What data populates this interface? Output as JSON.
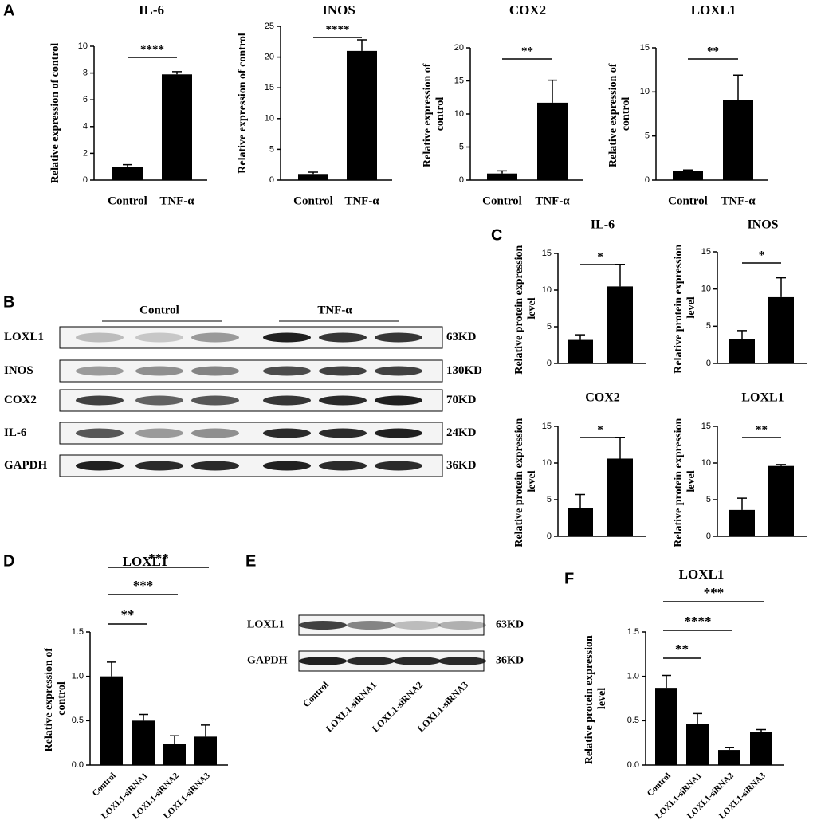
{
  "panels": {
    "a": "A",
    "b": "B",
    "c": "C",
    "d": "D",
    "e": "E",
    "f": "F"
  },
  "chart_data": [
    {
      "type": "bar",
      "title": "IL-6",
      "ylabel": "Relative expression of control",
      "categories": [
        "Control",
        "TNF-α"
      ],
      "values": [
        1.0,
        7.9
      ],
      "errors": [
        0.15,
        0.2
      ],
      "color": "#000000",
      "ylim": [
        0,
        10
      ],
      "yticks": [
        0,
        2,
        4,
        6,
        8,
        10
      ],
      "significance": "****"
    },
    {
      "type": "bar",
      "title": "INOS",
      "ylabel": "Relative expression of control",
      "categories": [
        "Control",
        "TNF-α"
      ],
      "values": [
        1.0,
        21.0
      ],
      "errors": [
        0.3,
        1.8
      ],
      "color": "#000000",
      "ylim": [
        0,
        25
      ],
      "yticks": [
        0,
        5,
        10,
        15,
        20,
        25
      ],
      "significance": "****"
    },
    {
      "type": "bar",
      "title": "COX2",
      "ylabel": "Relative expression of control",
      "categories": [
        "Control",
        "TNF-α"
      ],
      "values": [
        1.0,
        11.7
      ],
      "errors": [
        0.4,
        3.4
      ],
      "color": "#000000",
      "ylim": [
        0,
        20
      ],
      "yticks": [
        0,
        5,
        10,
        15,
        20
      ],
      "significance": "**"
    },
    {
      "type": "bar",
      "title": "LOXL1",
      "ylabel": "Relative expression of control",
      "categories": [
        "Control",
        "TNF-α"
      ],
      "values": [
        1.0,
        9.1
      ],
      "errors": [
        0.15,
        2.8
      ],
      "color": "#000000",
      "ylim": [
        0,
        15
      ],
      "yticks": [
        0,
        5,
        10,
        15
      ],
      "significance": "**"
    },
    {
      "type": "bar",
      "title": "IL-6",
      "ylabel": "Relative protein expression level",
      "values": [
        3.2,
        10.5
      ],
      "errors": [
        0.7,
        3.0
      ],
      "color": "#000000",
      "ylim": [
        0,
        15
      ],
      "yticks": [
        0,
        5,
        10,
        15
      ],
      "significance": "*"
    },
    {
      "type": "bar",
      "title": "INOS",
      "ylabel": "Relative protein expression level",
      "values": [
        3.3,
        8.9
      ],
      "errors": [
        1.1,
        2.6
      ],
      "color": "#000000",
      "ylim": [
        0,
        15
      ],
      "yticks": [
        0,
        5,
        10,
        15
      ],
      "significance": "*"
    },
    {
      "type": "bar",
      "title": "COX2",
      "ylabel": "Relative protein expression level",
      "values": [
        3.9,
        10.6
      ],
      "errors": [
        1.8,
        2.9
      ],
      "color": "#000000",
      "ylim": [
        0,
        15
      ],
      "yticks": [
        0,
        5,
        10,
        15
      ],
      "significance": "*"
    },
    {
      "type": "bar",
      "title": "LOXL1",
      "ylabel": "Relative protein expression level",
      "values": [
        3.6,
        9.6
      ],
      "errors": [
        1.6,
        0.2
      ],
      "color": "#000000",
      "ylim": [
        0,
        15
      ],
      "yticks": [
        0,
        5,
        10,
        15
      ],
      "significance": "**"
    },
    {
      "type": "bar",
      "title": "LOXL1",
      "ylabel": "Relative expression of control",
      "categories": [
        "Control",
        "LOXL1-siRNA1",
        "LOXL1-siRNA2",
        "LOXL1-siRNA3"
      ],
      "values": [
        1.0,
        0.5,
        0.24,
        0.32
      ],
      "errors": [
        0.16,
        0.07,
        0.09,
        0.13
      ],
      "color": "#000000",
      "ylim": [
        0,
        1.5
      ],
      "yticks": [
        {
          "value": 0,
          "label": "0.0"
        },
        0.5,
        {
          "value": 1,
          "label": "1.0"
        },
        1.5
      ],
      "comparisons": [
        {
          "groups": [
            "Control",
            "LOXL1-siRNA1"
          ],
          "label": "**"
        },
        {
          "groups": [
            "Control",
            "LOXL1-siRNA2"
          ],
          "label": "***"
        },
        {
          "groups": [
            "Control",
            "LOXL1-siRNA3"
          ],
          "label": "***"
        }
      ]
    },
    {
      "type": "bar",
      "title": "LOXL1",
      "ylabel": "Relative protein expression level",
      "categories": [
        "Control",
        "LOXL1-siRNA1",
        "LOXL1-siRNA2",
        "LOXL1-siRNA3"
      ],
      "values": [
        0.87,
        0.46,
        0.17,
        0.37
      ],
      "errors": [
        0.14,
        0.12,
        0.03,
        0.03
      ],
      "color": "#000000",
      "ylim": [
        0,
        1.5
      ],
      "yticks": [
        {
          "value": 0,
          "label": "0.0"
        },
        0.5,
        {
          "value": 1,
          "label": "1.0"
        },
        1.5
      ],
      "comparisons": [
        {
          "groups": [
            "Control",
            "LOXL1-siRNA1"
          ],
          "label": "**"
        },
        {
          "groups": [
            "Control",
            "LOXL1-siRNA2"
          ],
          "label": "****"
        },
        {
          "groups": [
            "Control",
            "LOXL1-siRNA3"
          ],
          "label": "***"
        }
      ]
    }
  ],
  "blot_b": {
    "groups": [
      "Control",
      "TNF-α"
    ],
    "rows": [
      {
        "label": "LOXL1",
        "size": "63KD"
      },
      {
        "label": "INOS",
        "size": "130KD"
      },
      {
        "label": "COX2",
        "size": "70KD"
      },
      {
        "label": "IL-6",
        "size": "24KD"
      },
      {
        "label": "GAPDH",
        "size": "36KD"
      }
    ]
  },
  "blot_e": {
    "lanes": [
      "Control",
      "LOXL1-siRNA1",
      "LOXL1-siRNA2",
      "LOXL1-siRNA3"
    ],
    "rows": [
      {
        "label": "LOXL1",
        "size": "63KD"
      },
      {
        "label": "GAPDH",
        "size": "36KD"
      }
    ]
  }
}
